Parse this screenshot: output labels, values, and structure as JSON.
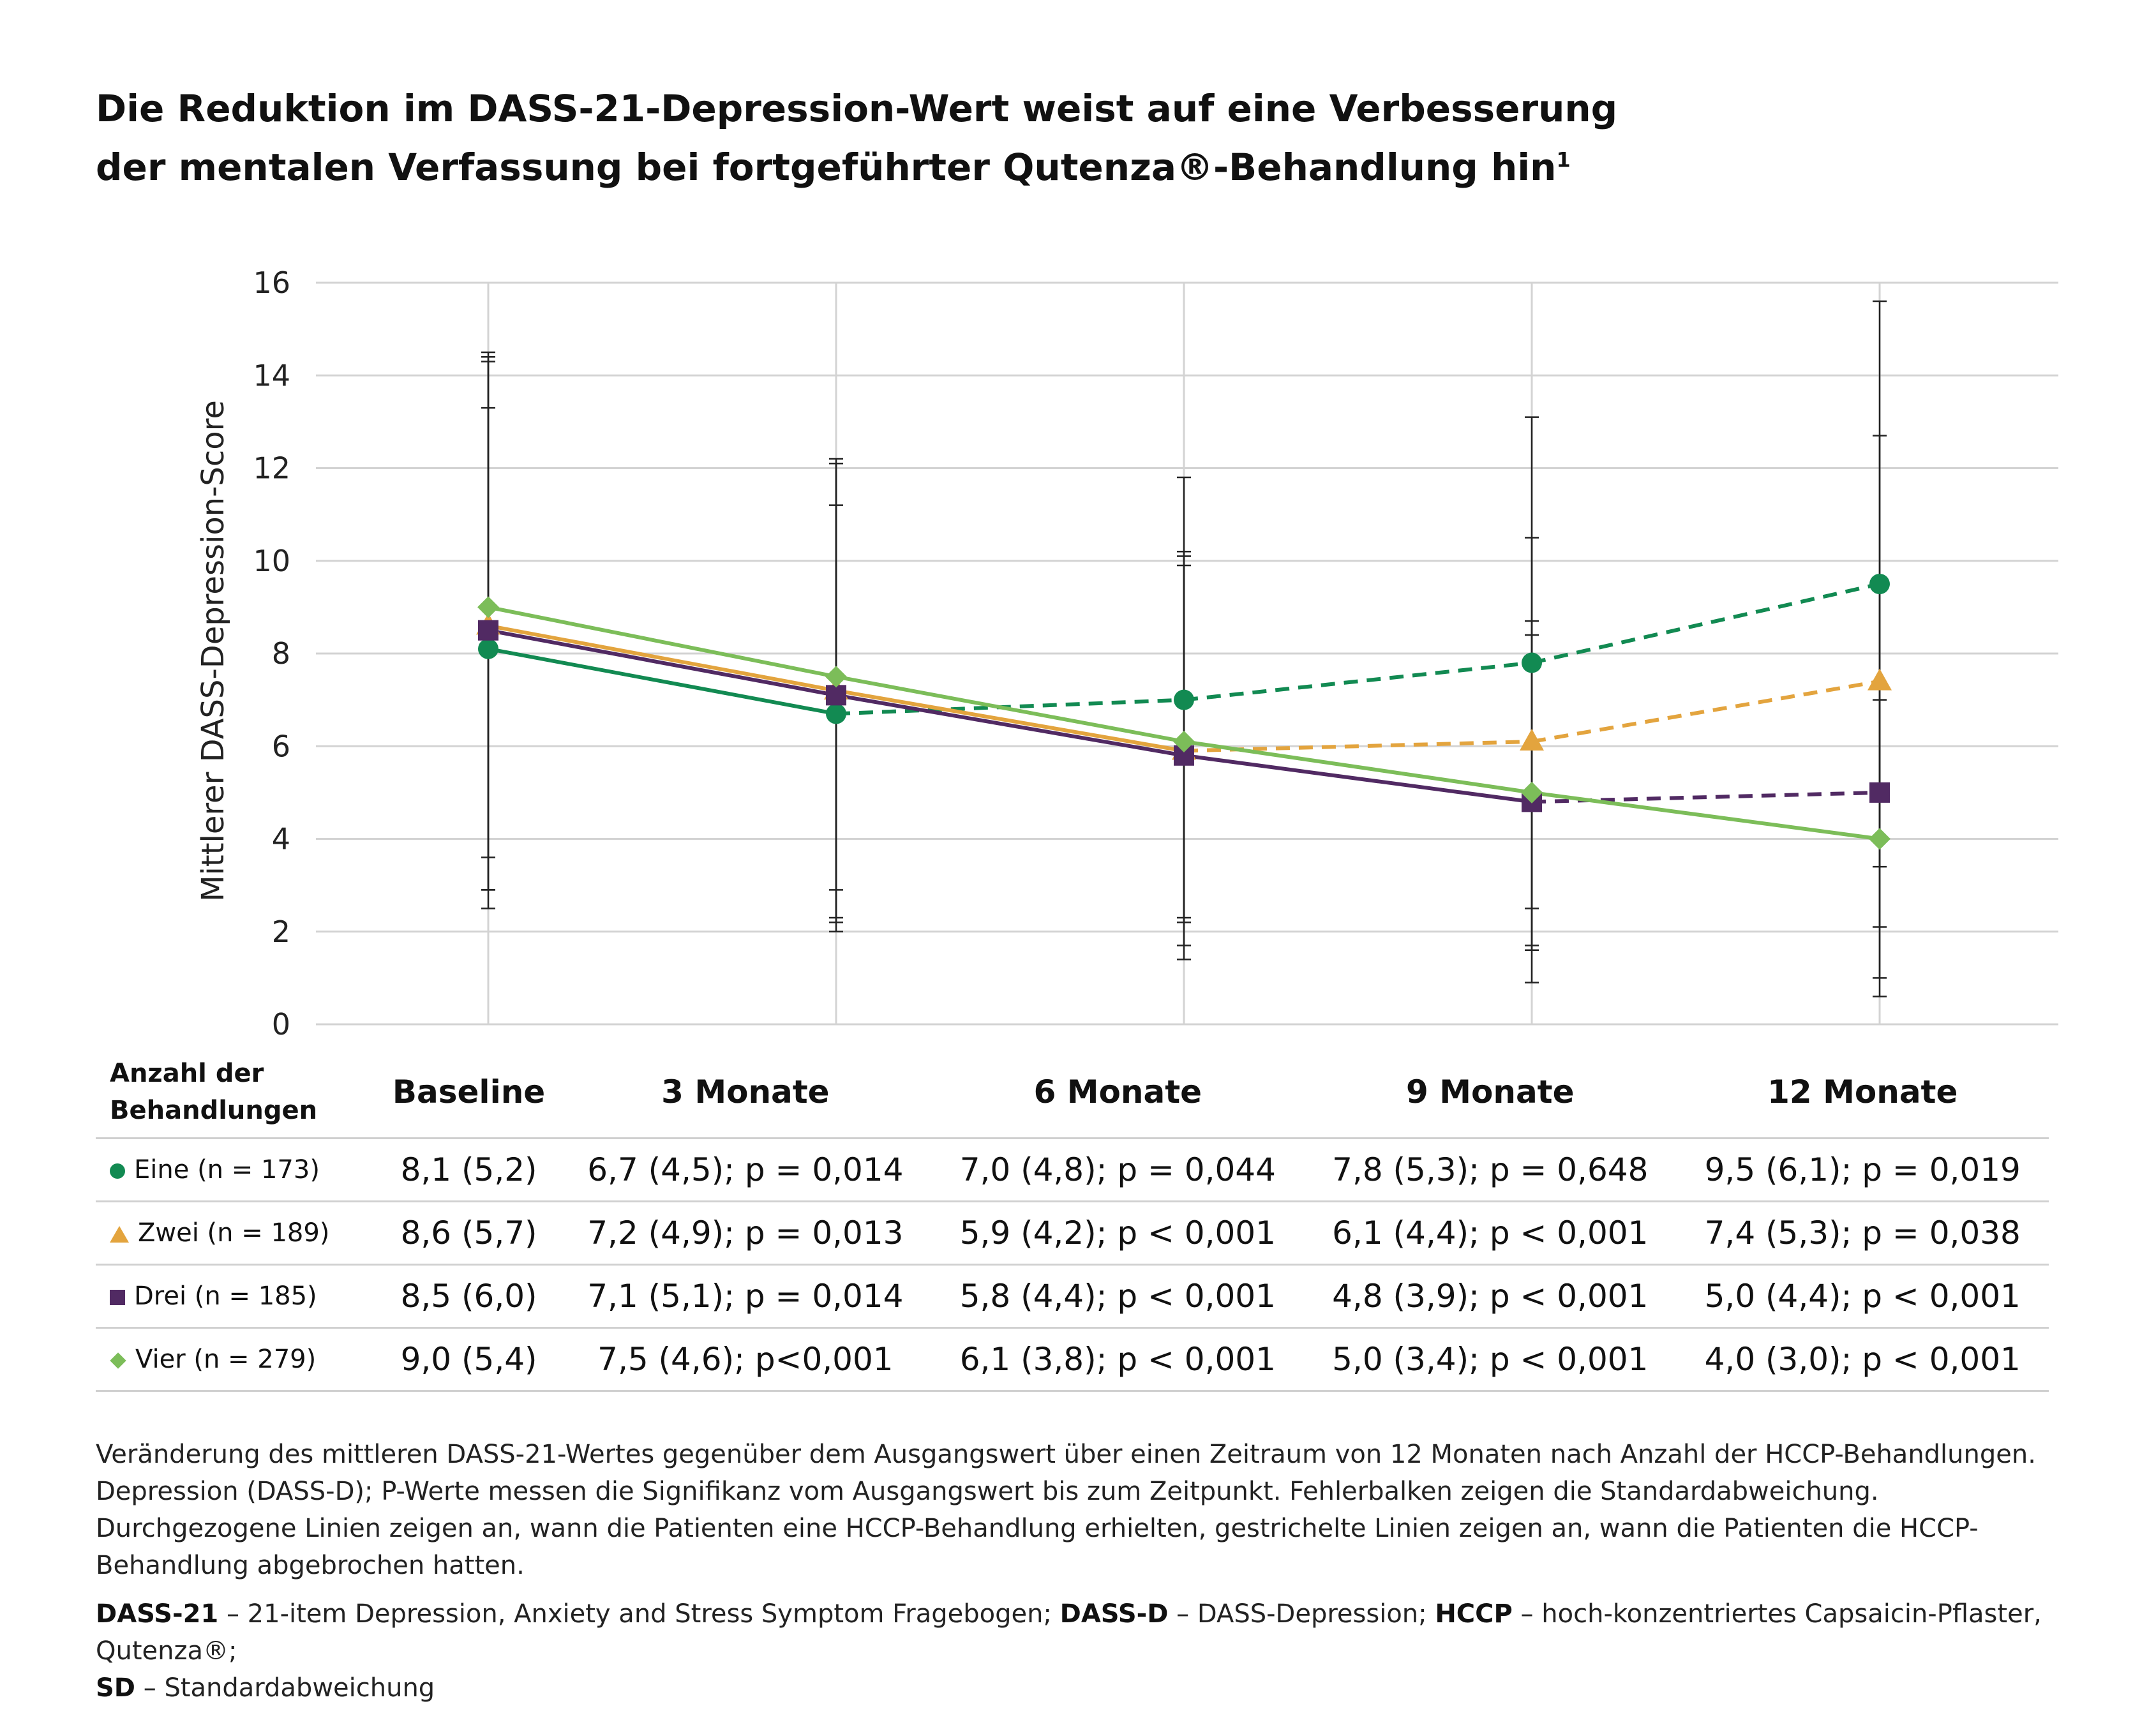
{
  "title": {
    "line1": "Die Reduktion im DASS-21-Depression-Wert weist auf eine Verbesserung",
    "line2": "der mentalen Verfassung bei fortgeführter Qutenza®-Behandlung hin",
    "superscript": "1"
  },
  "chart_data": {
    "type": "line",
    "title": "Die Reduktion im DASS-21-Depression-Wert weist auf eine Verbesserung der mentalen Verfassung bei fortgeführter Qutenza®-Behandlung hin",
    "xlabel": "",
    "ylabel": "Mittlerer DASS-Depression-Score",
    "ylim": [
      0,
      16
    ],
    "yticks": [
      0,
      2,
      4,
      6,
      8,
      10,
      12,
      14,
      16
    ],
    "grid": true,
    "categories": [
      "Baseline",
      "3 Monate",
      "6 Monate",
      "9 Monate",
      "12 Monate"
    ],
    "series": [
      {
        "name": "Eine (n = 173)",
        "marker": "circle",
        "color": "#128a52",
        "values": [
          8.1,
          6.7,
          7.0,
          7.8,
          9.5
        ],
        "sd": [
          5.2,
          4.5,
          4.8,
          5.3,
          6.1
        ],
        "solid_until_index": 1
      },
      {
        "name": "Zwei (n = 189)",
        "marker": "triangle",
        "color": "#e3a43e",
        "values": [
          8.6,
          7.2,
          5.9,
          6.1,
          7.4
        ],
        "sd": [
          5.7,
          4.9,
          4.2,
          4.4,
          5.3
        ],
        "solid_until_index": 2
      },
      {
        "name": "Drei (n = 185)",
        "marker": "square",
        "color": "#512a63",
        "values": [
          8.5,
          7.1,
          5.8,
          4.8,
          5.0
        ],
        "sd": [
          6.0,
          5.1,
          4.4,
          3.9,
          4.4
        ],
        "solid_until_index": 3
      },
      {
        "name": "Vier (n = 279)",
        "marker": "diamond",
        "color": "#7cbd59",
        "values": [
          9.0,
          7.5,
          6.1,
          5.0,
          4.0
        ],
        "sd": [
          5.4,
          4.6,
          3.8,
          3.4,
          3.0
        ],
        "solid_until_index": 4
      }
    ]
  },
  "table": {
    "header_label": [
      "Anzahl der",
      "Behandlungen"
    ],
    "columns": [
      "Baseline",
      "3 Monate",
      "6 Monate",
      "9 Monate",
      "12 Monate"
    ],
    "rows": [
      {
        "label": "Eine (n = 173)",
        "marker": "circle",
        "color": "#128a52",
        "cells": [
          "8,1 (5,2)",
          "6,7 (4,5); p = 0,014",
          "7,0 (4,8); p = 0,044",
          "7,8 (5,3); p = 0,648",
          "9,5 (6,1); p = 0,019"
        ]
      },
      {
        "label": "Zwei (n = 189)",
        "marker": "triangle",
        "color": "#e3a43e",
        "cells": [
          "8,6 (5,7)",
          "7,2 (4,9); p = 0,013",
          "5,9 (4,2); p < 0,001",
          "6,1 (4,4); p < 0,001",
          "7,4 (5,3); p = 0,038"
        ]
      },
      {
        "label": "Drei (n = 185)",
        "marker": "square",
        "color": "#512a63",
        "cells": [
          "8,5 (6,0)",
          "7,1 (5,1); p = 0,014",
          "5,8 (4,4); p < 0,001",
          "4,8 (3,9); p < 0,001",
          "5,0 (4,4); p < 0,001"
        ]
      },
      {
        "label": "Vier (n = 279)",
        "marker": "diamond",
        "color": "#7cbd59",
        "cells": [
          "9,0 (5,4)",
          "7,5 (4,6); p<0,001",
          "6,1 (3,8); p < 0,001",
          "5,0 (3,4); p < 0,001",
          "4,0 (3,0); p < 0,001"
        ]
      }
    ]
  },
  "footnote": {
    "p1": "Veränderung des mittleren DASS-21-Wertes gegenüber dem Ausgangswert über einen Zeitraum von 12 Monaten nach Anzahl der HCCP-Behandlungen. Depression (DASS-D); P-Werte messen die Signifikanz vom Ausgangswert bis zum Zeitpunkt. Fehlerbalken zeigen die Standardabweichung. Durchgezogene Linien zeigen an, wann die Patienten eine HCCP-Behandlung erhielten, gestrichelte Linien zeigen an, wann die Patienten die HCCP-Behandlung abgebrochen hatten.",
    "defs": [
      {
        "term": "DASS-21",
        "desc": " – 21-item Depression, Anxiety and Stress Symptom Fragebogen; "
      },
      {
        "term": "DASS-D",
        "desc": " – DASS-Depression; "
      },
      {
        "term": "HCCP",
        "desc": " – hoch-konzentriertes Capsaicin-Pflaster, Qutenza®;"
      },
      {
        "term": "SD",
        "desc": " – Standardabweichung"
      }
    ]
  }
}
